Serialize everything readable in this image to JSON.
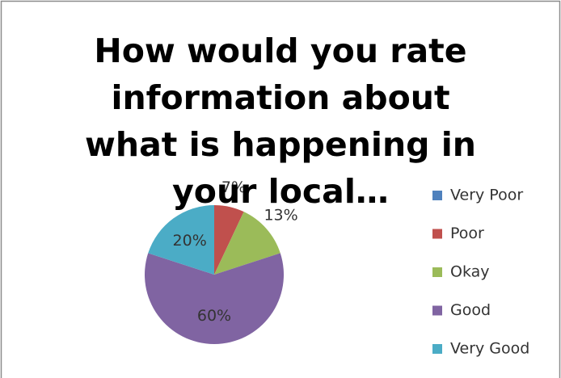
{
  "chart_data": {
    "type": "pie",
    "title": "How would you rate information about what is happening in your local…",
    "categories": [
      "Very Poor",
      "Poor",
      "Okay",
      "Good",
      "Very Good"
    ],
    "values": [
      0,
      7,
      13,
      60,
      20
    ],
    "value_labels": [
      null,
      "7%",
      "13%",
      "60%",
      "20%"
    ],
    "colors": [
      "#4f81bd",
      "#c0504d",
      "#9bbb59",
      "#8064a2",
      "#4bacc6"
    ],
    "legend": "right"
  }
}
